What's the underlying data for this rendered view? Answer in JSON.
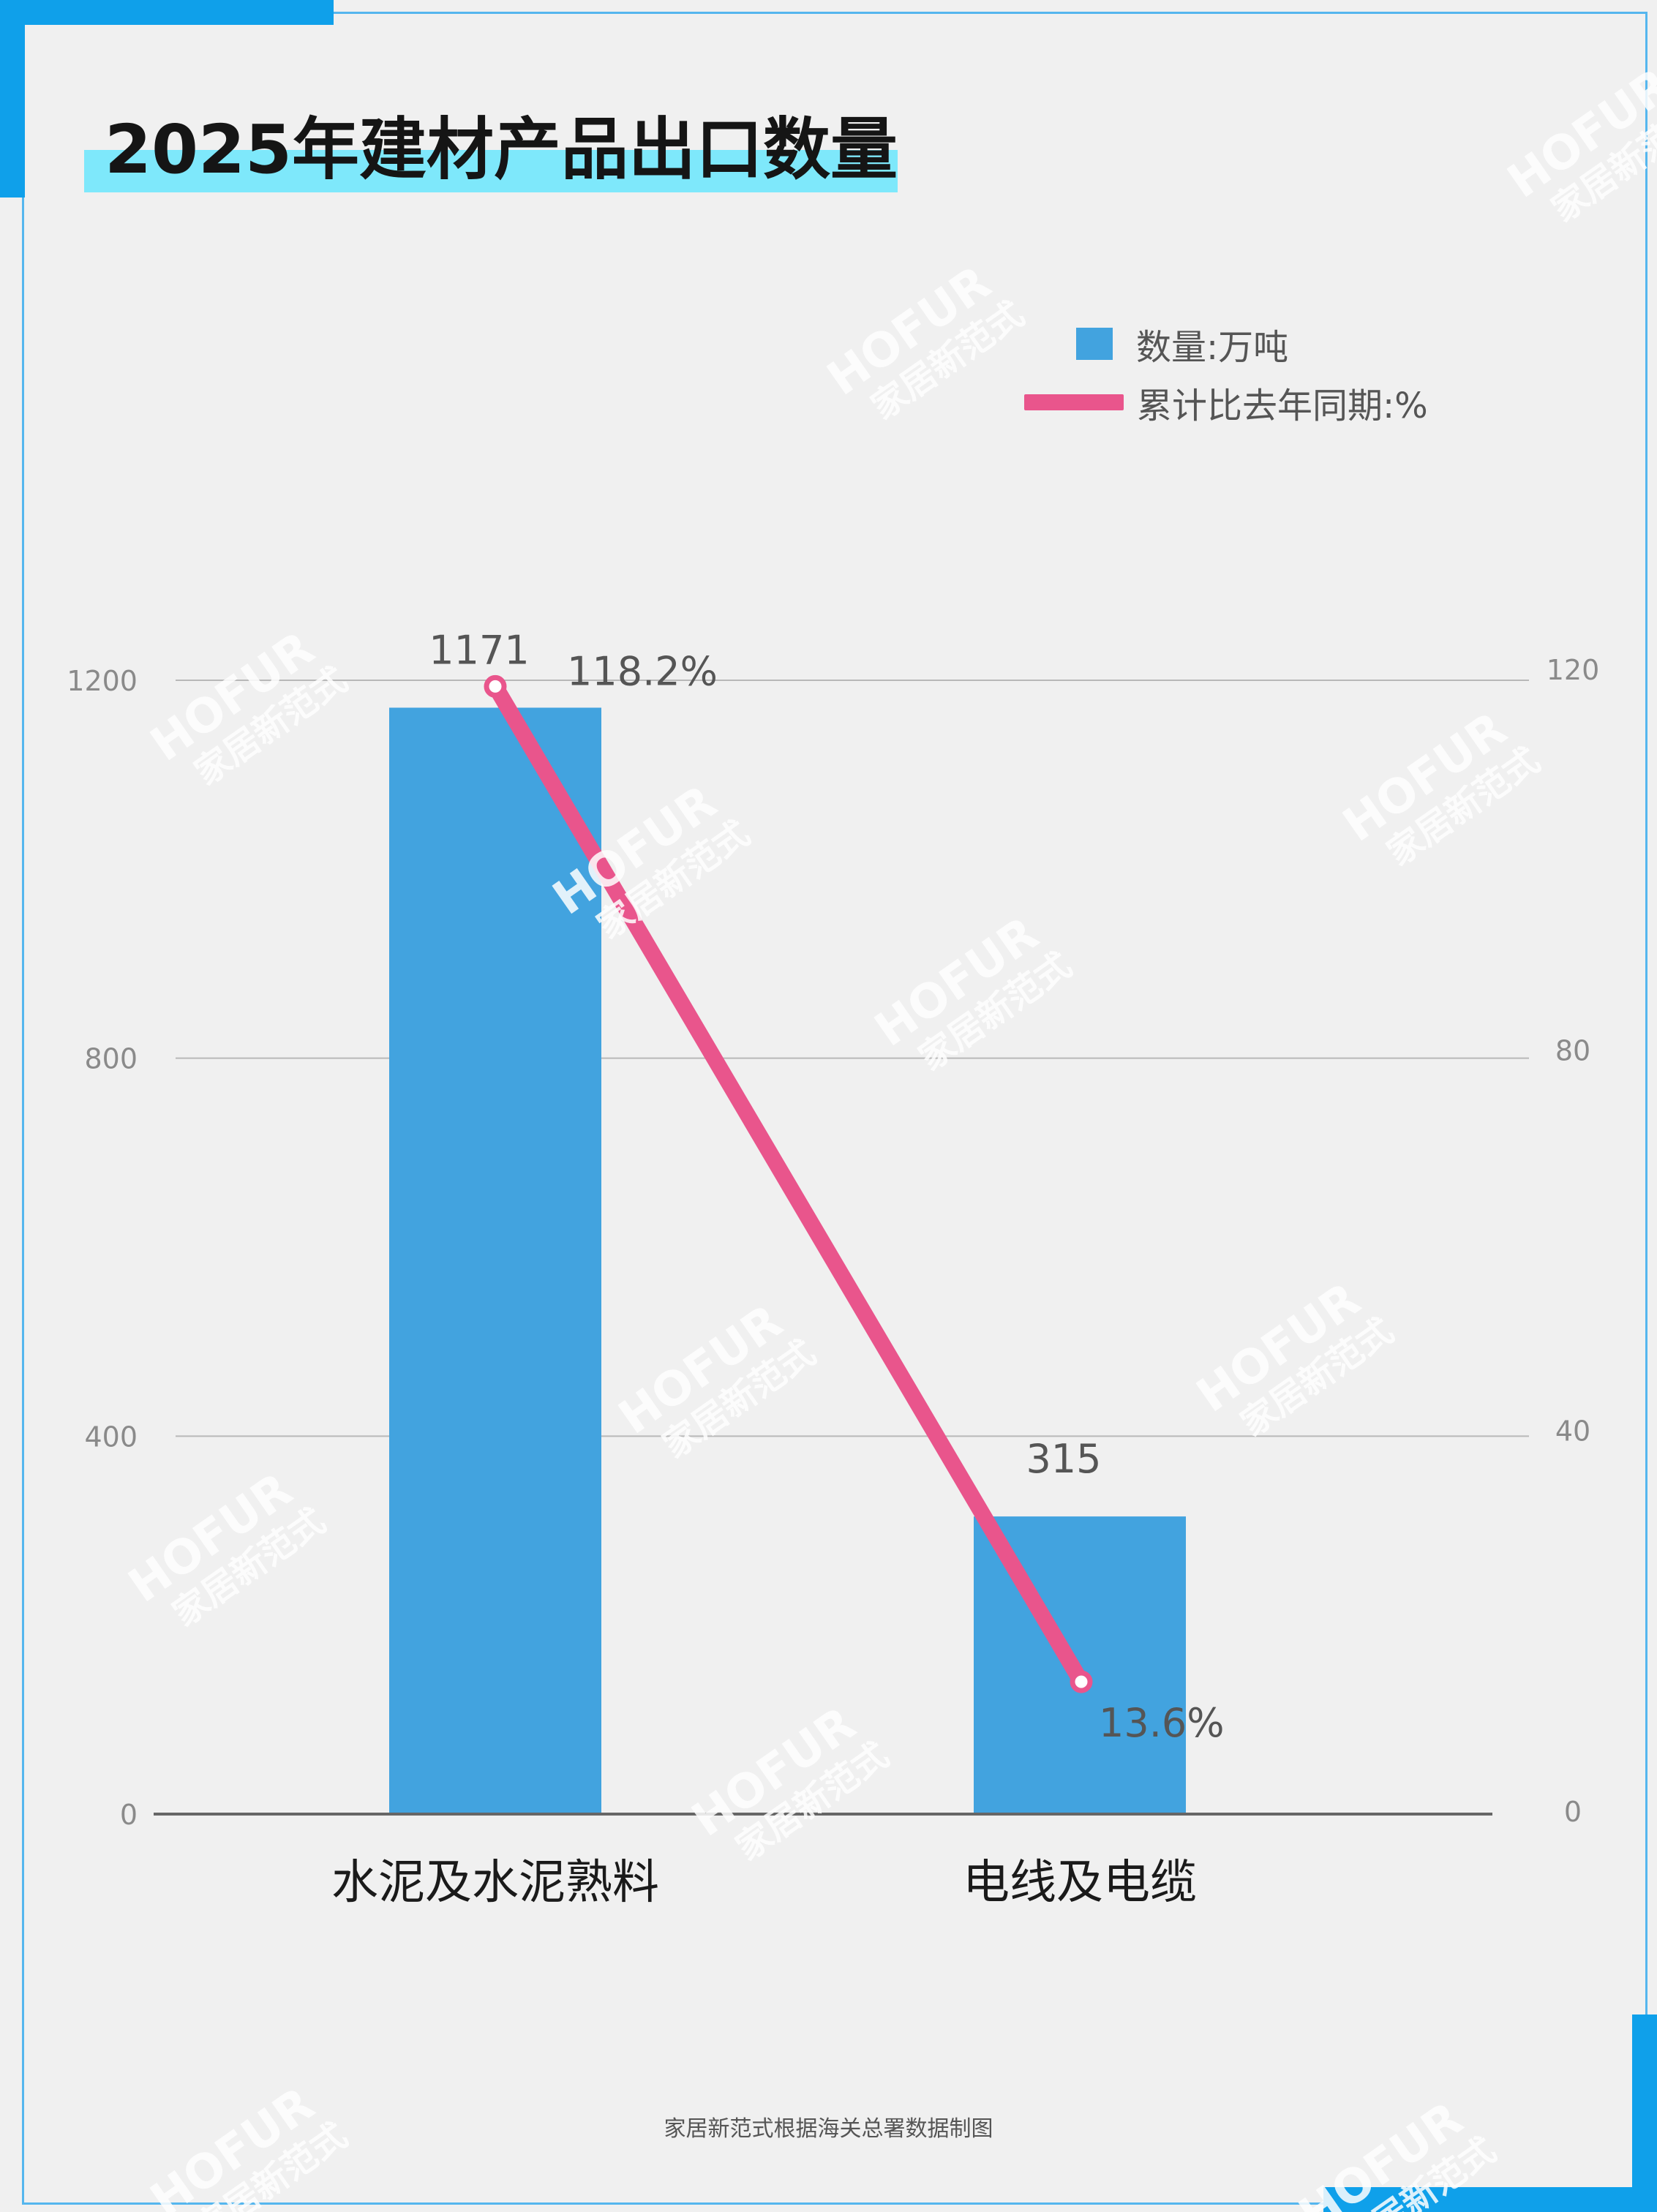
{
  "title": "2025年建材产品出口数量",
  "legend": {
    "bar_label": "数量:万吨",
    "line_label": "累计比去年同期:%"
  },
  "footnote": "家居新范式根据海关总署数据制图",
  "watermark": {
    "line1": "HOFUR",
    "line2": "家居新范式"
  },
  "colors": {
    "bar": "#42a3df",
    "line": "#e9558c",
    "title_highlight": "#7ee8fb",
    "accent": "#0fa0ea"
  },
  "chart_data": {
    "type": "bar",
    "categories": [
      "水泥及水泥熟料",
      "电线及电缆"
    ],
    "series": [
      {
        "name": "数量:万吨",
        "type": "bar",
        "axis": "left",
        "values": [
          1171,
          315
        ],
        "labels": [
          "1171",
          "315"
        ]
      },
      {
        "name": "累计比去年同期:%",
        "type": "line",
        "axis": "right",
        "values": [
          118.2,
          13.6
        ],
        "labels": [
          "118.2%",
          "13.6%"
        ]
      }
    ],
    "y_left": {
      "lim": [
        0,
        1200
      ],
      "ticks": [
        "0",
        "400",
        "800",
        "1200"
      ]
    },
    "y_right": {
      "lim": [
        0,
        120
      ],
      "ticks": [
        "0",
        "40",
        "80",
        "120"
      ]
    },
    "grid": true,
    "legend_position": "top-right"
  }
}
